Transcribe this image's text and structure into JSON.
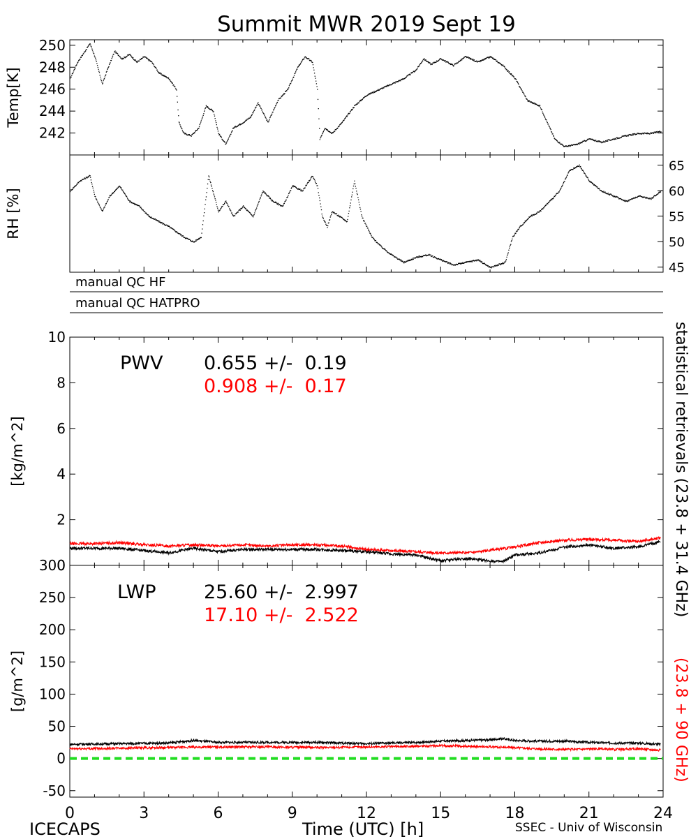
{
  "title": "Summit MWR 2019 Sept 19",
  "qc_labels": [
    "manual QC HF",
    "manual QC HATPRO"
  ],
  "footer": {
    "left": "ICECAPS",
    "center": "Time (UTC) [h]",
    "right": "SSEC - Univ of Wisconsin"
  },
  "side_labels": {
    "black_part": "statistical retrievals (23.8 + 31.4 GHz)",
    "red_part": "(23.8 + 90 GHz)"
  },
  "colors": {
    "black_series": "#000000",
    "red_series": "#ff0000",
    "zero_line": "#22dd22"
  },
  "stats": {
    "pwv": {
      "label": "PWV",
      "black": "0.655 +/-  0.19",
      "red": "0.908 +/-  0.17"
    },
    "lwp": {
      "label": "LWP",
      "black": "25.60 +/-  2.997",
      "red": "17.10 +/-  2.522"
    }
  },
  "chart_data": [
    {
      "type": "scatter",
      "name": "temp",
      "ylabel": "Temp[K]",
      "xlim": [
        0,
        24
      ],
      "ylim": [
        240,
        250.5
      ],
      "yticks": [
        242,
        244,
        246,
        248,
        250
      ],
      "series": [
        {
          "x": [
            0,
            0.3,
            0.6,
            0.8,
            1.0,
            1.3,
            1.5,
            1.8,
            2.1,
            2.4,
            2.7,
            3.0,
            3.3,
            3.6,
            4.0,
            4.3,
            4.4,
            4.6,
            4.9,
            5.2,
            5.5,
            5.8,
            6.0,
            6.3,
            6.6,
            7.0,
            7.3,
            7.6,
            8.0,
            8.4,
            8.8,
            9.2,
            9.5,
            9.8,
            10.0,
            10.1,
            10.3,
            10.6,
            11.0,
            11.5,
            12.0,
            12.5,
            13.0,
            13.5,
            14.0,
            14.3,
            14.6,
            15.0,
            15.5,
            16.0,
            16.5,
            17.0,
            17.5,
            18.0,
            18.5,
            19.0,
            19.3,
            19.6,
            20.0,
            20.5,
            21.0,
            21.5,
            22.0,
            22.5,
            23.0,
            23.5,
            23.9
          ],
          "y": [
            247,
            248.5,
            249.5,
            250.2,
            249,
            246.5,
            247.8,
            249.5,
            248.8,
            249.2,
            248.5,
            249,
            248.5,
            247.5,
            247,
            246,
            243,
            242,
            241.8,
            242.5,
            244.5,
            244,
            242,
            241,
            242.5,
            243,
            243.5,
            244.8,
            243,
            245,
            246,
            248,
            249,
            248.5,
            246,
            241.5,
            242.5,
            242,
            243,
            244.5,
            245.5,
            246,
            246.5,
            247,
            247.8,
            248.8,
            248.3,
            248.8,
            248.2,
            249,
            248.5,
            249,
            248.2,
            247,
            245,
            244.5,
            243,
            241.5,
            240.8,
            241,
            241.5,
            241.2,
            241.5,
            241.8,
            242,
            242,
            242.2
          ]
        }
      ]
    },
    {
      "type": "scatter",
      "name": "rh",
      "ylabel": "RH [%]",
      "xlim": [
        0,
        24
      ],
      "ylim": [
        44,
        67
      ],
      "yticks": [
        45,
        50,
        55,
        60,
        65
      ],
      "series": [
        {
          "x": [
            0,
            0.4,
            0.8,
            1.0,
            1.3,
            1.6,
            2.0,
            2.4,
            2.8,
            3.2,
            3.6,
            4.0,
            4.3,
            4.6,
            5.0,
            5.3,
            5.6,
            6.0,
            6.3,
            6.6,
            7.0,
            7.4,
            7.8,
            8.2,
            8.6,
            9.0,
            9.4,
            9.8,
            10.0,
            10.2,
            10.4,
            10.6,
            10.9,
            11.2,
            11.5,
            11.8,
            12.2,
            12.6,
            13.0,
            13.5,
            14.0,
            14.5,
            15.0,
            15.5,
            16.0,
            16.5,
            17.0,
            17.3,
            17.6,
            17.9,
            18.2,
            18.6,
            19.0,
            19.4,
            19.8,
            20.2,
            20.6,
            21.0,
            21.5,
            22.0,
            22.5,
            23.0,
            23.5,
            23.9
          ],
          "y": [
            60,
            62,
            63,
            59,
            56,
            59,
            61,
            58,
            57,
            55,
            54,
            53,
            52,
            51,
            50,
            51,
            63,
            56,
            58,
            55,
            57,
            55,
            60,
            58,
            57,
            61,
            60,
            63,
            61,
            55,
            53,
            56,
            55,
            54,
            62,
            55,
            51,
            49,
            47.5,
            46,
            47,
            47.5,
            46.5,
            45.5,
            46,
            46.5,
            45,
            45.5,
            46,
            51,
            53,
            55,
            56,
            58,
            60,
            64,
            65,
            62,
            60,
            59,
            58,
            59,
            58.5,
            60
          ]
        }
      ]
    },
    {
      "type": "line",
      "name": "pwv",
      "ylabel": "[kg/m^2]",
      "xlim": [
        0,
        24
      ],
      "ylim": [
        0,
        10
      ],
      "yticks": [
        0,
        2,
        4,
        6,
        8,
        10
      ],
      "series": [
        {
          "color": "black",
          "x": [
            0,
            1,
            2,
            3,
            4,
            5,
            6,
            7,
            8,
            9,
            10,
            11,
            12,
            13,
            14,
            15,
            16,
            17,
            17.5,
            18,
            19,
            20,
            21,
            22,
            23,
            23.9
          ],
          "y": [
            0.75,
            0.75,
            0.75,
            0.65,
            0.55,
            0.75,
            0.6,
            0.7,
            0.7,
            0.7,
            0.7,
            0.65,
            0.6,
            0.5,
            0.45,
            0.2,
            0.3,
            0.2,
            0.15,
            0.45,
            0.55,
            0.8,
            0.9,
            0.75,
            0.8,
            1.05
          ]
        },
        {
          "color": "red",
          "x": [
            0,
            1,
            2,
            3,
            4,
            5,
            6,
            7,
            8,
            9,
            10,
            11,
            12,
            13,
            14,
            15,
            16,
            17,
            18,
            19,
            20,
            21,
            22,
            23,
            23.9
          ],
          "y": [
            0.95,
            0.95,
            1.0,
            0.9,
            0.85,
            0.9,
            0.85,
            0.9,
            0.85,
            0.9,
            0.9,
            0.85,
            0.7,
            0.65,
            0.6,
            0.55,
            0.55,
            0.65,
            0.8,
            1.0,
            1.1,
            1.15,
            1.1,
            1.05,
            1.2
          ]
        }
      ]
    },
    {
      "type": "line",
      "name": "lwp",
      "ylabel": "[g/m^2]",
      "xlabel": "Time (UTC) [h]",
      "xlim": [
        0,
        24
      ],
      "ylim": [
        -60,
        300
      ],
      "yticks": [
        -50,
        0,
        50,
        100,
        150,
        200,
        250,
        300
      ],
      "xticks": [
        0,
        3,
        6,
        9,
        12,
        15,
        18,
        21,
        24
      ],
      "series": [
        {
          "color": "black",
          "x": [
            0,
            2,
            4,
            5,
            6,
            8,
            10,
            12,
            14,
            15,
            16,
            17,
            17.5,
            18,
            19,
            20,
            21,
            22,
            23,
            23.9
          ],
          "y": [
            22,
            23,
            24,
            28,
            25,
            25,
            25,
            23,
            25,
            27,
            28,
            29,
            31,
            28,
            27,
            27,
            25,
            24,
            24,
            22
          ]
        },
        {
          "color": "red",
          "x": [
            0,
            2,
            4,
            6,
            8,
            10,
            12,
            14,
            15,
            16,
            17,
            18,
            19,
            20,
            21,
            22,
            23,
            23.9
          ],
          "y": [
            15,
            16,
            17,
            18,
            18,
            17,
            18,
            19,
            20,
            19,
            18,
            17,
            15,
            14,
            15,
            14,
            15,
            13
          ]
        },
        {
          "color": "green",
          "dashed": true,
          "x": [
            0,
            24
          ],
          "y": [
            0,
            0
          ]
        }
      ]
    }
  ]
}
